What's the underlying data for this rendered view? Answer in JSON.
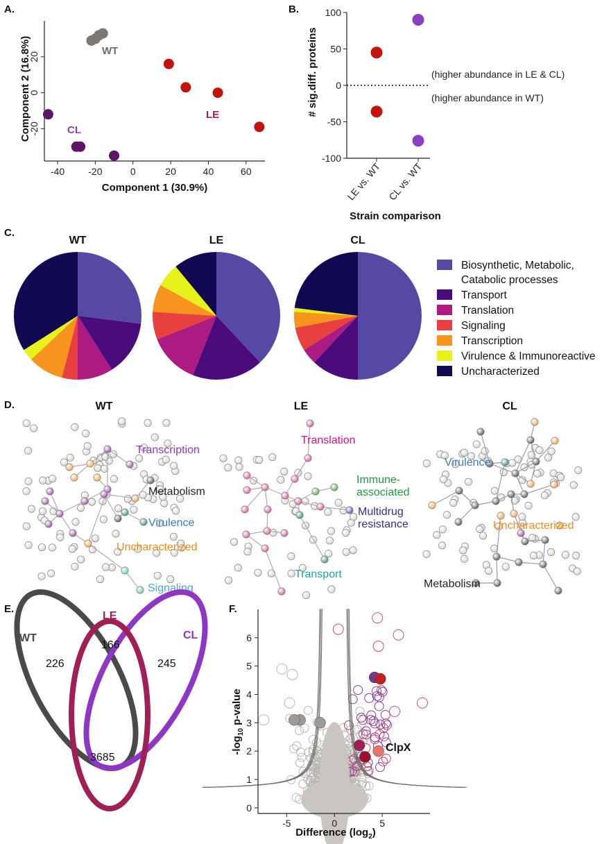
{
  "panels": {
    "A": {
      "label": "A.",
      "chart_data": {
        "type": "scatter",
        "xlabel": "Component 1 (30.9%)",
        "ylabel": "Component 2 (16.8%)",
        "xlim": [
          -47,
          70
        ],
        "ylim": [
          -38,
          40
        ],
        "xticks": [
          -40,
          -20,
          0,
          20,
          40,
          60
        ],
        "yticks": [
          -20,
          0,
          20
        ],
        "series": [
          {
            "name": "WT",
            "color": "#7a7775",
            "points": [
              [
                -22,
                29
              ],
              [
                -20,
                30
              ],
              [
                -18,
                32
              ],
              [
                -16,
                33
              ]
            ]
          },
          {
            "name": "LE",
            "color": "#c4120f",
            "points": [
              [
                19,
                16
              ],
              [
                28,
                3
              ],
              [
                45,
                0
              ],
              [
                67,
                -19
              ]
            ]
          },
          {
            "name": "CL",
            "color": "#5c1667",
            "points": [
              [
                -45,
                -12
              ],
              [
                -30,
                -30
              ],
              [
                -28,
                -30
              ],
              [
                -10,
                -35
              ]
            ]
          }
        ]
      }
    },
    "B": {
      "label": "B.",
      "chart_data": {
        "type": "scatter",
        "ylabel": "# sig.diff. proteins",
        "xlabel": "Strain comparison",
        "categories": [
          "LE vs. WT",
          "CL vs. WT"
        ],
        "ylim": [
          -100,
          100
        ],
        "yticks": [
          100,
          50,
          0,
          -50,
          -100
        ],
        "series": [
          {
            "category": "LE vs. WT",
            "color": "#c4120f",
            "values": [
              45,
              -36
            ]
          },
          {
            "category": "CL vs. WT",
            "color": "#8b3fc1",
            "values": [
              90,
              -76
            ]
          }
        ],
        "annotations": [
          "(higher abundance in LE & CL)",
          "(higher abundance in WT)"
        ]
      }
    },
    "C": {
      "label": "C.",
      "chart_data": {
        "type": "pie",
        "categories": [
          "Biosynthetic, Metabolic, Catabolic processes",
          "Transport",
          "Translation",
          "Signaling",
          "Transcription",
          "Virulence & Immunoreactive",
          "Uncharacterized"
        ],
        "colors": [
          "#5649a3",
          "#4a0c7c",
          "#ab1b82",
          "#e8403e",
          "#f7941d",
          "#e7f21a",
          "#110a53"
        ],
        "legend_lines": [
          [
            "Biosynthetic, Metabolic,",
            "Catabolic processes"
          ],
          [
            "Transport"
          ],
          [
            "Translation"
          ],
          [
            "Signaling"
          ],
          [
            "Transcription"
          ],
          [
            "Virulence & Immunoreactive"
          ],
          [
            "Uncharacterized"
          ]
        ],
        "series": [
          {
            "name": "WT",
            "values": [
              27,
              14,
              9,
              4,
              9,
              3,
              34
            ]
          },
          {
            "name": "LE",
            "values": [
              38,
              18,
              13,
              7,
              7,
              6,
              11
            ]
          },
          {
            "name": "CL",
            "values": [
              50,
              12,
              4,
              6,
              4,
              1,
              23
            ]
          }
        ]
      }
    },
    "D": {
      "label": "D.",
      "networks": [
        {
          "title": "WT",
          "labels": [
            {
              "text": "Transcription",
              "color": "#8a39b3"
            },
            {
              "text": "Metabolism",
              "color": "#222222"
            },
            {
              "text": "Virulence",
              "color": "#3e7bbf"
            },
            {
              "text": "Uncharacterized",
              "color": "#f08a16"
            },
            {
              "text": "Signaling",
              "color": "#4aa8cf"
            }
          ]
        },
        {
          "title": "LE",
          "labels": [
            {
              "text": "Translation",
              "color": "#d6127e"
            },
            {
              "text": "Immune-",
              "color": "#1e9a3c"
            },
            {
              "text": "associated",
              "color": "#1e9a3c"
            },
            {
              "text": "Multidrug",
              "color": "#3a2c8f"
            },
            {
              "text": "resistance",
              "color": "#3a2c8f"
            },
            {
              "text": "Transport",
              "color": "#1aa99a"
            }
          ]
        },
        {
          "title": "CL",
          "labels": [
            {
              "text": "Virulence",
              "color": "#3e7bbf"
            },
            {
              "text": "Uncharacterized",
              "color": "#f08a16"
            },
            {
              "text": "Metabolism",
              "color": "#222222"
            }
          ]
        }
      ]
    },
    "E": {
      "label": "E.",
      "venn": {
        "sets": [
          {
            "name": "WT",
            "color": "#4a4a4a",
            "unique": "226"
          },
          {
            "name": "LE",
            "color": "#a01f55",
            "unique": "166"
          },
          {
            "name": "CL",
            "color": "#8d37c4",
            "unique": "245"
          }
        ],
        "shared": "3685"
      }
    },
    "F": {
      "label": "F.",
      "chart_data": {
        "type": "scatter",
        "xlabel": "Difference (log",
        "xlabel_sub": "2",
        "xlabel_end": ")",
        "ylabel_pre": "-log",
        "ylabel_sub": "10",
        "ylabel_post": " p-value",
        "xlim": [
          -8,
          10
        ],
        "ylim": [
          -0.2,
          7
        ],
        "xticks": [
          -5,
          0,
          5
        ],
        "yticks": [
          0,
          1,
          2,
          3,
          4,
          5,
          6
        ],
        "annotation": "ClpX",
        "highlighted": [
          {
            "x": -3.6,
            "y": 3.1,
            "color": "#a09a96"
          },
          {
            "x": -4.2,
            "y": 3.1,
            "color": "#a09a96"
          },
          {
            "x": -1.5,
            "y": 3.0,
            "color": "#a09a96"
          },
          {
            "x": 4.2,
            "y": 4.6,
            "color": "#6a3d8f"
          },
          {
            "x": 4.8,
            "y": 4.55,
            "color": "#c41f23"
          },
          {
            "x": 2.6,
            "y": 2.2,
            "color": "#a01f55"
          },
          {
            "x": 3.2,
            "y": 1.8,
            "color": "#9e0f2c"
          },
          {
            "x": 4.6,
            "y": 2.0,
            "color": "#e8736d"
          }
        ]
      }
    }
  }
}
